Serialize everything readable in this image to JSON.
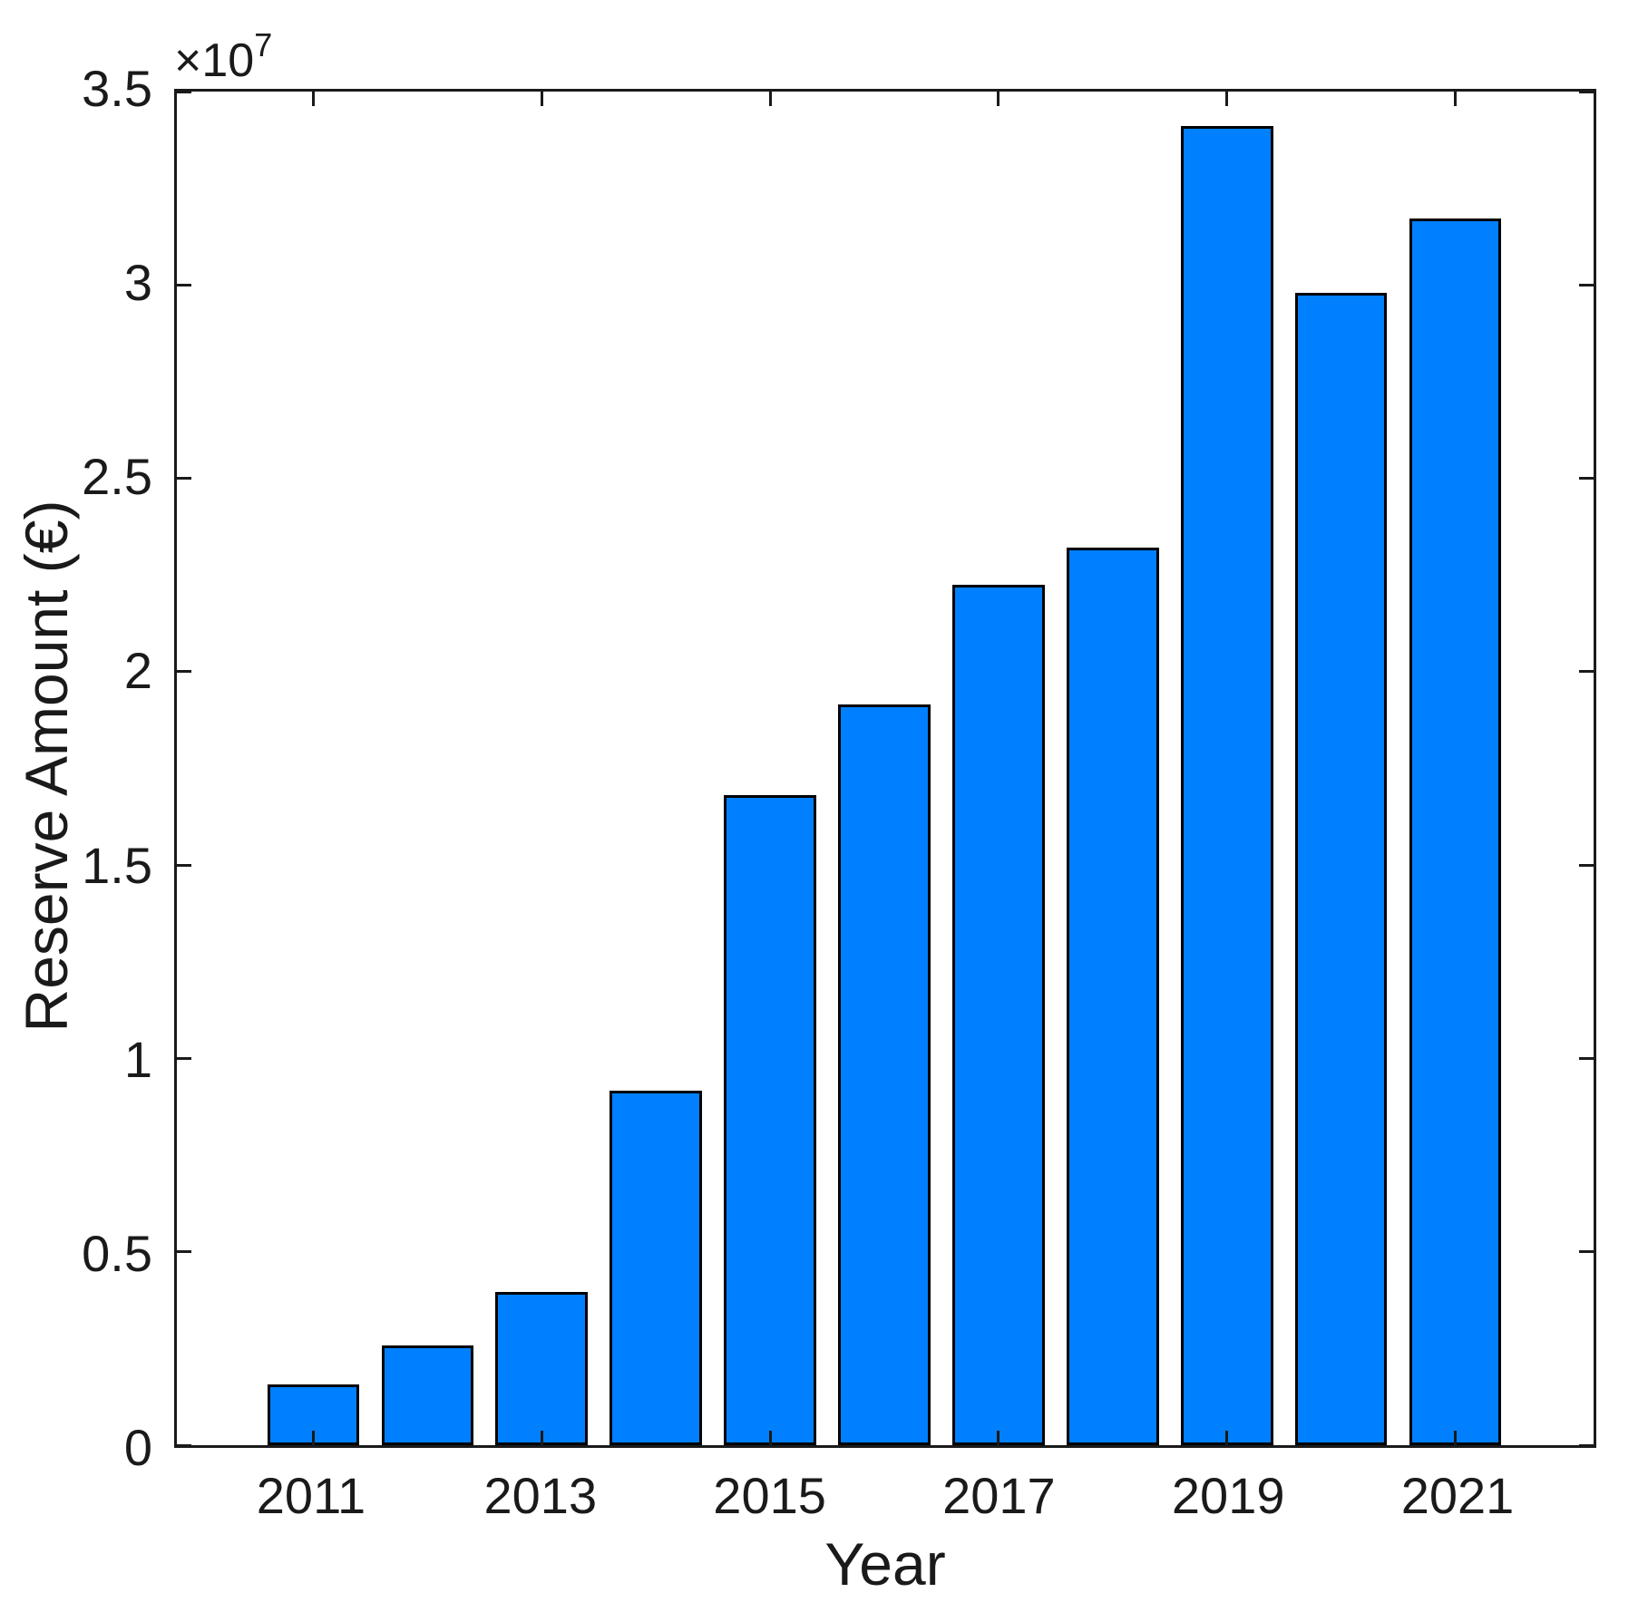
{
  "chart_data": {
    "type": "bar",
    "title": "",
    "xlabel": "Year",
    "ylabel": "Reserve Amount (€)",
    "categories": [
      2011,
      2012,
      2013,
      2014,
      2015,
      2016,
      2017,
      2018,
      2019,
      2020,
      2021
    ],
    "values": [
      1560000,
      2590000,
      3970000,
      9170000,
      16810000,
      19150000,
      22250000,
      23210000,
      34110000,
      29790000,
      31710000
    ],
    "ylim": [
      0,
      35000000
    ],
    "y_tick_values": [
      0,
      5000000,
      10000000,
      15000000,
      20000000,
      25000000,
      30000000,
      35000000
    ],
    "y_tick_labels": [
      "0",
      "0.5",
      "1",
      "1.5",
      "2",
      "2.5",
      "3",
      "3.5"
    ],
    "y_offset": {
      "base": "×10",
      "exponent": "7"
    },
    "x_tick_years": [
      2011,
      2013,
      2015,
      2017,
      2019,
      2021
    ],
    "grid": false,
    "legend": "none",
    "colors": {
      "bar_fill": "#0080ff",
      "bar_edge": "#000000",
      "axis": "#1a1a1a",
      "text": "#1a1a1a",
      "background": "#ffffff"
    }
  }
}
